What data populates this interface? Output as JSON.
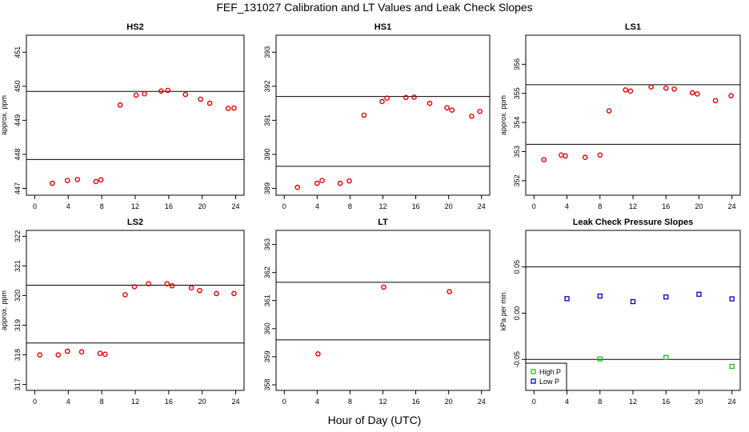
{
  "figure": {
    "title": "FEF_131027  Calibration and LT Values and Leak Check Slopes",
    "xlabel": "Hour of Day (UTC)"
  },
  "colors": {
    "calibration_point": "#dd0000",
    "high_p": "#22bb22",
    "low_p": "#0000cc",
    "axis": "#000000"
  },
  "chart_data": [
    {
      "type": "scatter",
      "title": "HS2",
      "ylabel": "approx. ppm",
      "xlim": [
        -1,
        25
      ],
      "ylim": [
        446.8,
        451.5
      ],
      "xticks": [
        0,
        4,
        8,
        12,
        16,
        20,
        24
      ],
      "yticks": [
        447,
        448,
        449,
        450,
        451
      ],
      "hlines": [
        447.85,
        449.85
      ],
      "series": [
        {
          "marker": "circle",
          "color": "#dd0000",
          "x": [
            2.1,
            3.9,
            5.1,
            7.3,
            7.9,
            10.2,
            12.1,
            13.1,
            15.1,
            15.9,
            18.0,
            19.8,
            20.9,
            23.1,
            23.8
          ],
          "y": [
            447.15,
            447.23,
            447.26,
            447.2,
            447.25,
            449.45,
            449.74,
            449.78,
            449.86,
            449.88,
            449.76,
            449.62,
            449.5,
            449.35,
            449.36
          ]
        }
      ]
    },
    {
      "type": "scatter",
      "title": "HS1",
      "ylabel": "",
      "xlim": [
        -1,
        25
      ],
      "ylim": [
        388.8,
        393.5
      ],
      "xticks": [
        0,
        4,
        8,
        12,
        16,
        20,
        24
      ],
      "yticks": [
        389,
        390,
        391,
        392,
        393
      ],
      "hlines": [
        389.65,
        391.7
      ],
      "series": [
        {
          "marker": "circle",
          "color": "#dd0000",
          "x": [
            1.6,
            4.0,
            4.6,
            6.8,
            7.9,
            9.7,
            11.9,
            12.5,
            14.8,
            15.8,
            17.7,
            19.8,
            20.4,
            22.8,
            23.8
          ],
          "y": [
            389.03,
            389.15,
            389.23,
            389.15,
            389.22,
            391.15,
            391.55,
            391.65,
            391.67,
            391.68,
            391.5,
            391.37,
            391.3,
            391.12,
            391.26
          ]
        }
      ]
    },
    {
      "type": "scatter",
      "title": "LS1",
      "ylabel": "approx. ppm",
      "xlim": [
        -1,
        25
      ],
      "ylim": [
        351.5,
        357.0
      ],
      "xticks": [
        0,
        4,
        8,
        12,
        16,
        20,
        24
      ],
      "yticks": [
        352,
        353,
        354,
        355,
        356
      ],
      "hlines": [
        353.25,
        355.3
      ],
      "series": [
        {
          "marker": "circle",
          "color": "#dd0000",
          "x": [
            1.2,
            3.3,
            3.8,
            6.2,
            8.0,
            9.1,
            11.1,
            11.7,
            14.2,
            16.0,
            17.0,
            19.2,
            19.8,
            22.0,
            23.9
          ],
          "y": [
            352.72,
            352.88,
            352.85,
            352.8,
            352.88,
            354.4,
            355.12,
            355.08,
            355.22,
            355.18,
            355.15,
            355.02,
            354.98,
            354.75,
            354.92
          ]
        }
      ]
    },
    {
      "type": "scatter",
      "title": "LS2",
      "ylabel": "approx. ppm",
      "xlim": [
        -1,
        25
      ],
      "ylim": [
        316.8,
        322.2
      ],
      "xticks": [
        0,
        4,
        8,
        12,
        16,
        20,
        24
      ],
      "yticks": [
        317,
        318,
        319,
        320,
        321,
        322
      ],
      "hlines": [
        318.4,
        320.35
      ],
      "series": [
        {
          "marker": "circle",
          "color": "#dd0000",
          "x": [
            0.6,
            2.8,
            3.9,
            5.6,
            7.8,
            8.4,
            10.8,
            11.9,
            13.6,
            15.8,
            16.4,
            18.7,
            19.7,
            21.7,
            23.8
          ],
          "y": [
            318.0,
            318.0,
            318.12,
            318.1,
            318.05,
            318.02,
            320.03,
            320.3,
            320.4,
            320.4,
            320.33,
            320.26,
            320.17,
            320.07,
            320.07
          ]
        }
      ]
    },
    {
      "type": "scatter",
      "title": "LT",
      "ylabel": "",
      "xlim": [
        -1,
        25
      ],
      "ylim": [
        357.8,
        363.5
      ],
      "xticks": [
        0,
        4,
        8,
        12,
        16,
        20,
        24
      ],
      "yticks": [
        358,
        359,
        360,
        361,
        362,
        363
      ],
      "hlines": [
        359.6,
        361.65
      ],
      "series": [
        {
          "marker": "circle",
          "color": "#dd0000",
          "x": [
            4.1,
            12.1,
            20.1
          ],
          "y": [
            359.1,
            361.48,
            361.32
          ]
        }
      ]
    },
    {
      "type": "scatter",
      "title": "Leak Check Pressure Slopes",
      "ylabel": "kPa per min.",
      "xlim": [
        -1,
        25
      ],
      "ylim": [
        -0.0835,
        0.0895
      ],
      "xticks": [
        0,
        4,
        8,
        12,
        16,
        20,
        24
      ],
      "yticks": [
        -0.05,
        0.0,
        0.05
      ],
      "ytick_labels": [
        "-0.05",
        "0.00",
        "0.05"
      ],
      "hlines": [
        -0.05,
        0.05
      ],
      "legend": {
        "position": "bottom-left"
      },
      "series": [
        {
          "name": "High P",
          "marker": "square",
          "color": "#22bb22",
          "x": [
            8,
            16,
            24
          ],
          "y": [
            -0.0495,
            -0.0478,
            -0.0575
          ]
        },
        {
          "name": "Low P",
          "marker": "square",
          "color": "#0000cc",
          "x": [
            4,
            8,
            12,
            16,
            20,
            24
          ],
          "y": [
            0.0157,
            0.0185,
            0.0125,
            0.0175,
            0.0205,
            0.0155
          ]
        }
      ]
    }
  ]
}
